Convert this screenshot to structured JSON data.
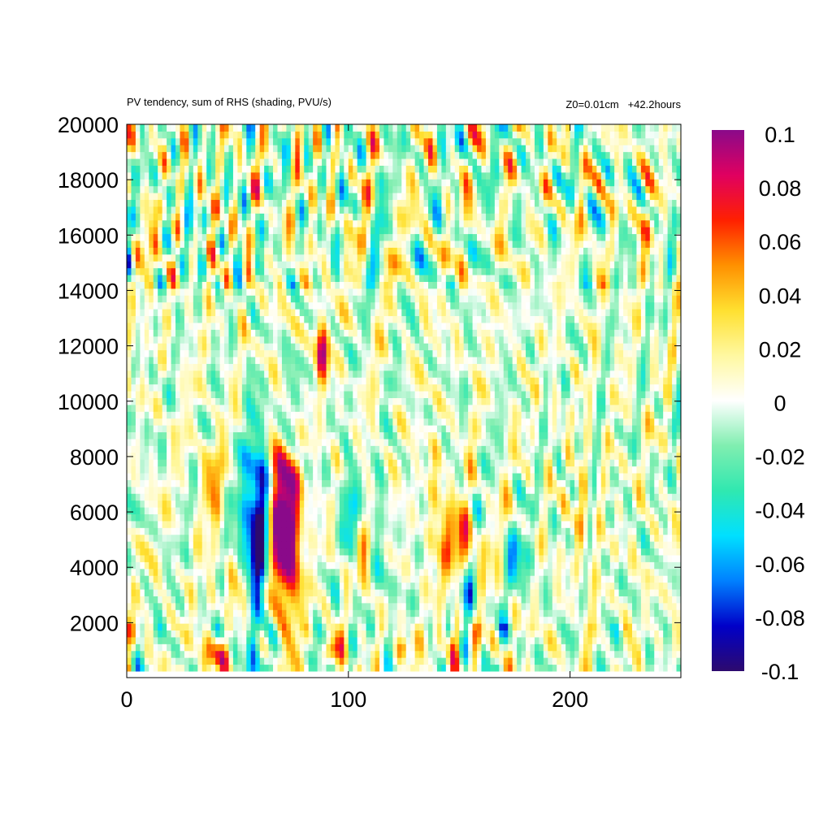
{
  "title_left": "PV tendency, sum of RHS (shading, PVU/s)",
  "title_right": "Z0=0.01cm   +42.2hours",
  "chart_data": {
    "type": "heatmap",
    "title": "PV tendency, sum of RHS (shading, PVU/s)",
    "annotation": "Z0=0.01cm   +42.2hours",
    "xlim": [
      0,
      250
    ],
    "ylim": [
      250,
      20000
    ],
    "x_ticks": [
      0,
      100,
      200
    ],
    "y_ticks": [
      2000,
      4000,
      6000,
      8000,
      10000,
      12000,
      14000,
      16000,
      18000,
      20000
    ],
    "colorbar": {
      "range": [
        -0.1,
        0.1
      ],
      "ticks": [
        0.1,
        0.08,
        0.06,
        0.04,
        0.02,
        0,
        -0.02,
        -0.04,
        -0.06,
        -0.08,
        -0.1
      ],
      "colormap": "rainbow",
      "stops": [
        "#2d0a6e",
        "#0000c8",
        "#0080ff",
        "#00e0ff",
        "#30e8b0",
        "#80eeb0",
        "#ffffff",
        "#fff8a0",
        "#ffe030",
        "#ff9000",
        "#ff2000",
        "#e00060",
        "#8a0a8a"
      ]
    },
    "features": [
      {
        "x": 68,
        "y": 6000,
        "sx": 4,
        "sy": 2600,
        "v": 0.12
      },
      {
        "x": 58,
        "y": 4000,
        "sx": 5,
        "sy": 2800,
        "v": -0.11
      },
      {
        "x": 52,
        "y": 2300,
        "sx": 6,
        "sy": 1200,
        "v": 0.1
      },
      {
        "x": 42,
        "y": 900,
        "sx": 4,
        "sy": 500,
        "v": 0.1
      },
      {
        "x": 48,
        "y": 1600,
        "sx": 5,
        "sy": 900,
        "v": -0.09
      },
      {
        "x": 75,
        "y": 5200,
        "sx": 3,
        "sy": 2200,
        "v": 0.08
      },
      {
        "x": 62,
        "y": 7200,
        "sx": 3,
        "sy": 1800,
        "v": -0.06
      },
      {
        "x": 72,
        "y": 9500,
        "sx": 4,
        "sy": 1300,
        "v": -0.05
      },
      {
        "x": 88,
        "y": 11800,
        "sx": 2,
        "sy": 800,
        "v": 0.09
      },
      {
        "x": 102,
        "y": 5800,
        "sx": 2.5,
        "sy": 1300,
        "v": -0.07
      },
      {
        "x": 106,
        "y": 4600,
        "sx": 2.5,
        "sy": 800,
        "v": 0.07
      },
      {
        "x": 150,
        "y": 4800,
        "sx": 6,
        "sy": 900,
        "v": 0.06
      },
      {
        "x": 153,
        "y": 2800,
        "sx": 3,
        "sy": 900,
        "v": -0.05
      },
      {
        "x": 148,
        "y": 1400,
        "sx": 2,
        "sy": 600,
        "v": 0.08
      },
      {
        "x": 177,
        "y": 4300,
        "sx": 4,
        "sy": 900,
        "v": -0.04
      },
      {
        "x": 92,
        "y": 1000,
        "sx": 2,
        "sy": 300,
        "v": 0.07
      },
      {
        "x": 125,
        "y": 1100,
        "sx": 2,
        "sy": 300,
        "v": 0.06
      },
      {
        "x": 38,
        "y": 7200,
        "sx": 3.5,
        "sy": 1100,
        "v": 0.04
      },
      {
        "x": 30,
        "y": 16200,
        "sx": 3,
        "sy": 600,
        "v": -0.04
      },
      {
        "x": 37,
        "y": 16200,
        "sx": 2,
        "sy": 600,
        "v": 0.05
      },
      {
        "x": 10,
        "y": 15600,
        "sx": 3,
        "sy": 800,
        "v": 0.03
      },
      {
        "x": 235,
        "y": 16500,
        "sx": 2,
        "sy": 900,
        "v": 0.025
      },
      {
        "x": 140,
        "y": 6600,
        "sx": 2.5,
        "sy": 1600,
        "v": 0.03
      },
      {
        "x": 115,
        "y": 4200,
        "sx": 2.5,
        "sy": 1500,
        "v": -0.03
      },
      {
        "x": 205,
        "y": 5600,
        "sx": 3,
        "sy": 1500,
        "v": 0.025
      }
    ]
  }
}
